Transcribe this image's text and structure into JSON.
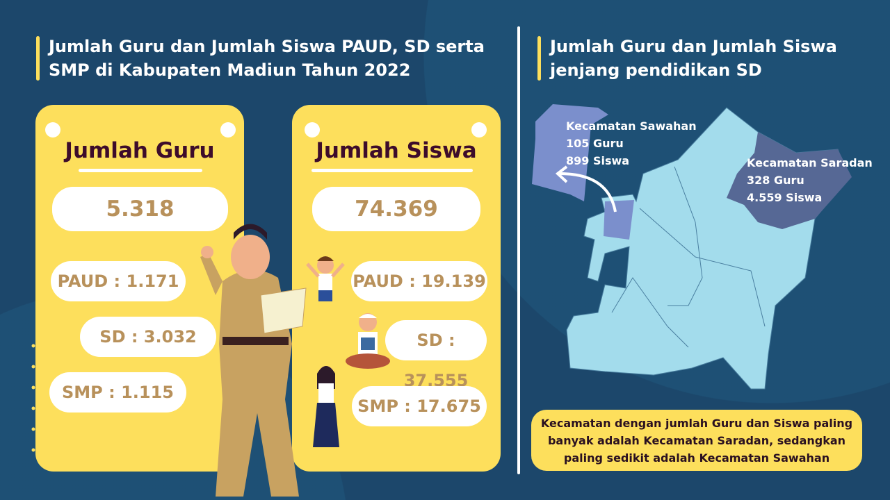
{
  "left_heading": "Jumlah Guru dan Jumlah Siswa PAUD, SD serta SMP di Kabupaten Madiun Tahun 2022",
  "right_heading": "Jumlah Guru dan Jumlah Siswa jenjang pendidikan SD",
  "guru": {
    "title": "Jumlah Guru",
    "total": "5.318",
    "paud": "PAUD : 1.171",
    "sd": "SD : 3.032",
    "smp": "SMP : 1.115"
  },
  "siswa": {
    "title": "Jumlah Siswa",
    "total": "74.369",
    "paud": "PAUD : 19.139",
    "sd": "SD : 37.555",
    "smp": "SMP : 17.675"
  },
  "map": {
    "sawahan": {
      "name": "Kecamatan Sawahan",
      "guru": "105 Guru",
      "siswa": "899 Siswa",
      "color": "#7b8fcc"
    },
    "saradan": {
      "name": "Kecamatan Saradan",
      "guru": "328 Guru",
      "siswa": "4.559 Siswa",
      "color": "#566895"
    },
    "base_color": "#a3dcec"
  },
  "note": "Kecamatan dengan jumlah Guru dan Siswa paling banyak adalah Kecamatan Saradan, sedangkan paling sedikit adalah Kecamatan Sawahan",
  "colors": {
    "background": "#1c476b",
    "accent": "#fddf5c",
    "number": "#b8915b"
  }
}
